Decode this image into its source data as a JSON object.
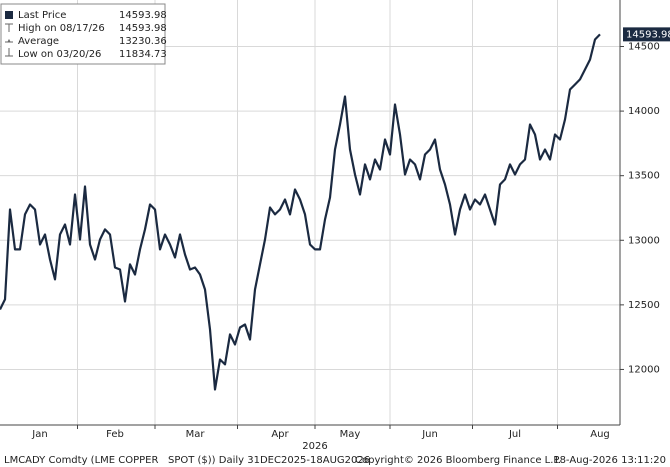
{
  "chart_data": {
    "type": "line",
    "series": [
      {
        "name": "Last Price",
        "color": "#1b2a41",
        "values": [
          12464,
          12542,
          13238,
          12929,
          12929,
          13200,
          13277,
          13238,
          12967,
          13045,
          12851,
          12697,
          13045,
          13122,
          12967,
          13354,
          13006,
          13416,
          12967,
          12851,
          13006,
          13084,
          13045,
          12789,
          12774,
          12526,
          12813,
          12735,
          12929,
          13084,
          13277,
          13238,
          12929,
          13045,
          12967,
          12867,
          13045,
          12890,
          12774,
          12789,
          12735,
          12619,
          12310,
          11845,
          12077,
          12039,
          12271,
          12193,
          12325,
          12348,
          12232,
          12619,
          12813,
          13006,
          13254,
          13200,
          13238,
          13316,
          13200,
          13393,
          13316,
          13200,
          12967,
          12929,
          12929,
          13161,
          13331,
          13703,
          13896,
          14113,
          13703,
          13509,
          13354,
          13587,
          13471,
          13625,
          13548,
          13780,
          13664,
          14051,
          13819,
          13509,
          13625,
          13587,
          13471,
          13664,
          13703,
          13780,
          13548,
          13432,
          13277,
          13045,
          13238,
          13354,
          13238,
          13316,
          13277,
          13354,
          13238,
          13122,
          13432,
          13471,
          13587,
          13509,
          13587,
          13625,
          13896,
          13819,
          13625,
          13703,
          13625,
          13819,
          13780,
          13935,
          14167,
          14206,
          14245,
          14322,
          14399,
          14554,
          14593.98
        ]
      }
    ],
    "categories": [
      null,
      null,
      null,
      null,
      null,
      null,
      null,
      null,
      "Jan",
      null,
      null,
      null,
      null,
      null,
      null,
      null,
      null,
      null,
      null,
      null,
      null,
      null,
      null,
      "Feb",
      null,
      null,
      null,
      null,
      null,
      null,
      null,
      null,
      null,
      null,
      null,
      null,
      null,
      null,
      null,
      "Mar",
      null,
      null,
      null,
      null,
      null,
      null,
      null,
      null,
      null,
      null,
      null,
      null,
      null,
      null,
      null,
      null,
      "Apr",
      null,
      null,
      null,
      null,
      null,
      null,
      null,
      null,
      null,
      null,
      null,
      null,
      null,
      "May",
      null,
      null,
      null,
      null,
      null,
      null,
      null,
      null,
      null,
      null,
      null,
      null,
      null,
      null,
      null,
      "Jun",
      null,
      null,
      null,
      null,
      null,
      null,
      null,
      null,
      null,
      null,
      null,
      null,
      null,
      null,
      null,
      null,
      "Jul",
      null,
      null,
      null,
      null,
      null,
      null,
      null,
      null,
      null,
      null,
      null,
      null,
      null,
      null,
      null,
      null,
      "Aug"
    ],
    "x_axis_label": "2026",
    "ylim": [
      11570,
      14860
    ],
    "yticks": [
      12000,
      12500,
      13000,
      13500,
      14000,
      14500
    ],
    "grid": true,
    "legend_stats": [
      {
        "label": "High on 08/17/26",
        "value": 14593.98
      },
      {
        "label": "Average",
        "value": 13230.36
      },
      {
        "label": "Low on 03/20/26",
        "value": 11834.73
      }
    ],
    "footer": [
      "LMCADY Comdty (LME COPPER   SPOT ($)) Daily 31DEC2025-18AUG2026",
      "Copyright© 2026 Bloomberg Finance L.P.",
      "18-Aug-2026 13:11:20"
    ]
  }
}
